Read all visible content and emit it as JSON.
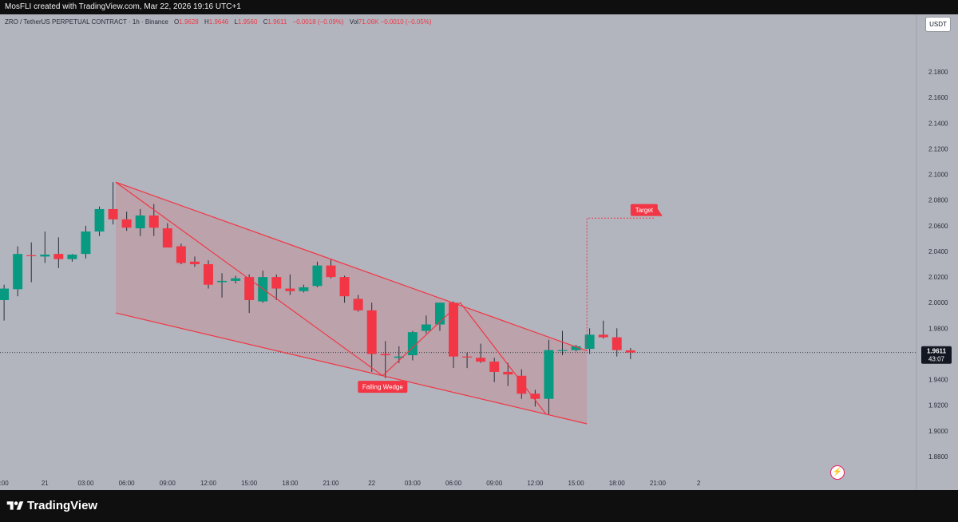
{
  "header": {
    "credit": "MosFLI created with TradingView.com, Mar 22, 2026 19:16 UTC+1"
  },
  "legend": {
    "symbol": "ZRO / TetherUS PERPETUAL CONTRACT · 1h · Binance",
    "o_label": "O",
    "o_value": "1.9628",
    "h_label": "H",
    "h_value": "1.9646",
    "l_label": "L",
    "l_value": "1.9560",
    "c_label": "C",
    "c_value": "1.9611",
    "change": "−0.0018 (−0.09%)",
    "vol_label": "Vol",
    "vol_value": "71.06K",
    "vol_change": "−0.0010 (−0.05%)"
  },
  "currency": "USDT",
  "footer": {
    "brand": "TradingView"
  },
  "icons": {
    "brand": "tradingview-logo-icon",
    "alert": "lightning-bolt-icon"
  },
  "colors": {
    "up": "#089981",
    "down": "#f23645",
    "pattern": "#f23645",
    "background": "#b2b5be"
  },
  "chart_data": {
    "type": "candlestick",
    "timeframe": "1h",
    "ylim": [
      1.87,
      2.2
    ],
    "yticks": [
      "2.1800",
      "2.1600",
      "2.1400",
      "2.1200",
      "2.1000",
      "2.0800",
      "2.0600",
      "2.0400",
      "2.0200",
      "2.0000",
      "1.9800",
      "1.9400",
      "1.9200",
      "1.9000",
      "1.8800"
    ],
    "xlim": [
      -0.3,
      67
    ],
    "xticks": [
      {
        "i": 0,
        "label": ":00"
      },
      {
        "i": 3,
        "label": "21"
      },
      {
        "i": 6,
        "label": "03:00"
      },
      {
        "i": 9,
        "label": "06:00"
      },
      {
        "i": 12,
        "label": "09:00"
      },
      {
        "i": 15,
        "label": "12:00"
      },
      {
        "i": 18,
        "label": "15:00"
      },
      {
        "i": 21,
        "label": "18:00"
      },
      {
        "i": 24,
        "label": "21:00"
      },
      {
        "i": 27,
        "label": "22"
      },
      {
        "i": 30,
        "label": "03:00"
      },
      {
        "i": 33,
        "label": "06:00"
      },
      {
        "i": 36,
        "label": "09:00"
      },
      {
        "i": 39,
        "label": "12:00"
      },
      {
        "i": 42,
        "label": "15:00"
      },
      {
        "i": 45,
        "label": "18:00"
      },
      {
        "i": 48,
        "label": "21:00"
      },
      {
        "i": 51,
        "label": "2"
      }
    ],
    "candles": [
      {
        "o": 2.002,
        "h": 2.014,
        "l": 1.986,
        "c": 2.011
      },
      {
        "o": 2.0105,
        "h": 2.044,
        "l": 2.005,
        "c": 2.038
      },
      {
        "o": 2.037,
        "h": 2.047,
        "l": 2.016,
        "c": 2.0365
      },
      {
        "o": 2.036,
        "h": 2.0555,
        "l": 2.031,
        "c": 2.0375
      },
      {
        "o": 2.038,
        "h": 2.051,
        "l": 2.027,
        "c": 2.034
      },
      {
        "o": 2.034,
        "h": 2.038,
        "l": 2.032,
        "c": 2.0375
      },
      {
        "o": 2.038,
        "h": 2.06,
        "l": 2.0345,
        "c": 2.0555
      },
      {
        "o": 2.0555,
        "h": 2.075,
        "l": 2.052,
        "c": 2.073
      },
      {
        "o": 2.073,
        "h": 2.094,
        "l": 2.061,
        "c": 2.065
      },
      {
        "o": 2.065,
        "h": 2.071,
        "l": 2.056,
        "c": 2.0585
      },
      {
        "o": 2.058,
        "h": 2.073,
        "l": 2.052,
        "c": 2.068
      },
      {
        "o": 2.068,
        "h": 2.077,
        "l": 2.052,
        "c": 2.0585
      },
      {
        "o": 2.058,
        "h": 2.062,
        "l": 2.046,
        "c": 2.043
      },
      {
        "o": 2.044,
        "h": 2.046,
        "l": 2.03,
        "c": 2.031
      },
      {
        "o": 2.032,
        "h": 2.036,
        "l": 2.028,
        "c": 2.03
      },
      {
        "o": 2.03,
        "h": 2.033,
        "l": 2.011,
        "c": 2.014
      },
      {
        "o": 2.016,
        "h": 2.023,
        "l": 2.004,
        "c": 2.017
      },
      {
        "o": 2.017,
        "h": 2.021,
        "l": 2.015,
        "c": 2.019
      },
      {
        "o": 2.02,
        "h": 2.022,
        "l": 1.992,
        "c": 2.002
      },
      {
        "o": 2.001,
        "h": 2.025,
        "l": 2.0,
        "c": 2.02
      },
      {
        "o": 2.02,
        "h": 2.022,
        "l": 2.002,
        "c": 2.011
      },
      {
        "o": 2.011,
        "h": 2.022,
        "l": 2.006,
        "c": 2.009
      },
      {
        "o": 2.009,
        "h": 2.014,
        "l": 2.008,
        "c": 2.012
      },
      {
        "o": 2.013,
        "h": 2.032,
        "l": 2.012,
        "c": 2.029
      },
      {
        "o": 2.029,
        "h": 2.034,
        "l": 2.019,
        "c": 2.02
      },
      {
        "o": 2.02,
        "h": 2.021,
        "l": 2.0,
        "c": 2.005
      },
      {
        "o": 2.003,
        "h": 2.006,
        "l": 1.993,
        "c": 1.994
      },
      {
        "o": 1.994,
        "h": 2.0,
        "l": 1.946,
        "c": 1.96
      },
      {
        "o": 1.96,
        "h": 1.97,
        "l": 1.941,
        "c": 1.959
      },
      {
        "o": 1.957,
        "h": 1.966,
        "l": 1.953,
        "c": 1.958
      },
      {
        "o": 1.959,
        "h": 1.978,
        "l": 1.955,
        "c": 1.977
      },
      {
        "o": 1.978,
        "h": 1.99,
        "l": 1.976,
        "c": 1.983
      },
      {
        "o": 1.983,
        "h": 2.0,
        "l": 1.978,
        "c": 2.0
      },
      {
        "o": 2.0,
        "h": 2.001,
        "l": 1.949,
        "c": 1.958
      },
      {
        "o": 1.958,
        "h": 1.961,
        "l": 1.949,
        "c": 1.9575
      },
      {
        "o": 1.957,
        "h": 1.968,
        "l": 1.953,
        "c": 1.954
      },
      {
        "o": 1.954,
        "h": 1.957,
        "l": 1.938,
        "c": 1.946
      },
      {
        "o": 1.946,
        "h": 1.953,
        "l": 1.935,
        "c": 1.944
      },
      {
        "o": 1.943,
        "h": 1.948,
        "l": 1.925,
        "c": 1.929
      },
      {
        "o": 1.929,
        "h": 1.932,
        "l": 1.919,
        "c": 1.925
      },
      {
        "o": 1.925,
        "h": 1.971,
        "l": 1.913,
        "c": 1.963
      },
      {
        "o": 1.963,
        "h": 1.978,
        "l": 1.959,
        "c": 1.963
      },
      {
        "o": 1.963,
        "h": 1.967,
        "l": 1.962,
        "c": 1.966
      },
      {
        "o": 1.964,
        "h": 1.98,
        "l": 1.96,
        "c": 1.975
      },
      {
        "o": 1.975,
        "h": 1.986,
        "l": 1.972,
        "c": 1.973
      },
      {
        "o": 1.973,
        "h": 1.98,
        "l": 1.958,
        "c": 1.963
      },
      {
        "o": 1.9628,
        "h": 1.9646,
        "l": 1.956,
        "c": 1.9611
      }
    ],
    "last_price": {
      "label": "1.9611",
      "countdown": "43:07",
      "value": 1.9611
    },
    "wedge": {
      "upper": [
        [
          8.2,
          2.094
        ],
        [
          42.8,
          1.9625
        ]
      ],
      "lower": [
        [
          8.2,
          1.992
        ],
        [
          42.8,
          1.9055
        ]
      ],
      "zigzag": [
        [
          8.2,
          2.094
        ],
        [
          27.8,
          1.943
        ],
        [
          33.5,
          2.0
        ],
        [
          39.8,
          1.913
        ]
      ],
      "label": "Falling Wedge",
      "label_at": [
        27.8,
        1.939
      ]
    },
    "target": {
      "label": "Target",
      "path": [
        [
          42.8,
          1.9625
        ],
        [
          42.8,
          2.066
        ],
        [
          47.8,
          2.066
        ]
      ],
      "label_at": [
        47.0,
        2.072
      ]
    }
  }
}
